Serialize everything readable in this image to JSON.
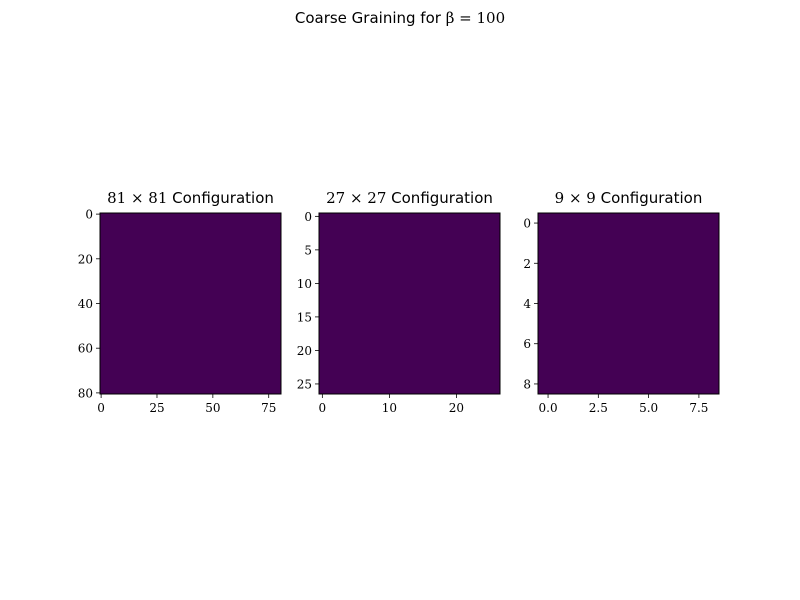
{
  "figure": {
    "title_prefix": "Coarse Graining for ",
    "title_math": "β = 100"
  },
  "chart_data": [
    {
      "type": "heatmap",
      "title_math": "81 × 81",
      "title_text": " Configuration",
      "grid_size": 81,
      "value": "uniform",
      "color": "#440154",
      "x_ticks": [
        0,
        25,
        50,
        75
      ],
      "x_tick_labels": [
        "0",
        "25",
        "50",
        "75"
      ],
      "y_ticks": [
        0,
        20,
        40,
        60,
        80
      ],
      "y_tick_labels": [
        "0",
        "20",
        "40",
        "60",
        "80"
      ]
    },
    {
      "type": "heatmap",
      "title_math": "27 × 27",
      "title_text": " Configuration",
      "grid_size": 27,
      "value": "uniform",
      "color": "#440154",
      "x_ticks": [
        0,
        10,
        20
      ],
      "x_tick_labels": [
        "0",
        "10",
        "20"
      ],
      "y_ticks": [
        0,
        5,
        10,
        15,
        20,
        25
      ],
      "y_tick_labels": [
        "0",
        "5",
        "10",
        "15",
        "20",
        "25"
      ]
    },
    {
      "type": "heatmap",
      "title_math": "9 × 9",
      "title_text": " Configuration",
      "grid_size": 9,
      "value": "uniform",
      "color": "#440154",
      "x_ticks": [
        0,
        2.5,
        5,
        7.5
      ],
      "x_tick_labels": [
        "0.0",
        "2.5",
        "5.0",
        "7.5"
      ],
      "y_ticks": [
        0,
        2,
        4,
        6,
        8
      ],
      "y_tick_labels": [
        "0",
        "2",
        "4",
        "6",
        "8"
      ]
    }
  ]
}
